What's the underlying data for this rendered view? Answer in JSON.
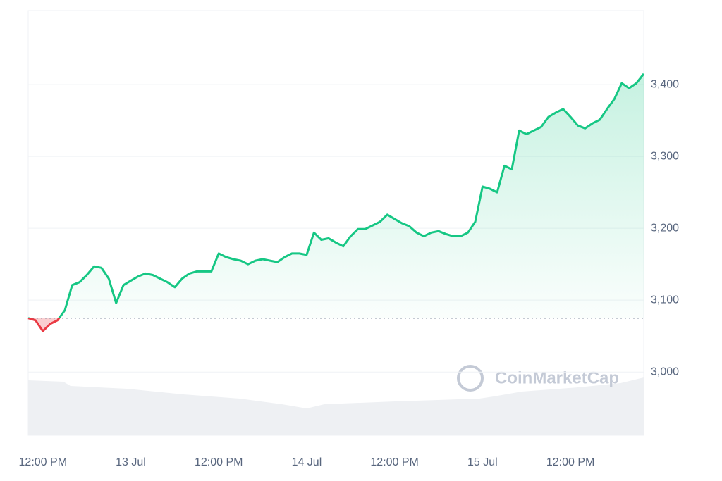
{
  "chart_data": {
    "type": "line",
    "series": [
      {
        "name": "Price",
        "color": "#16c784",
        "down_color": "#ea3943",
        "values": [
          3075,
          3072,
          3057,
          3067,
          3072,
          3086,
          3121,
          3125,
          3135,
          3147,
          3145,
          3130,
          3096,
          3121,
          3127,
          3133,
          3137,
          3135,
          3130,
          3125,
          3118,
          3130,
          3137,
          3140,
          3140,
          3140,
          3165,
          3160,
          3157,
          3155,
          3150,
          3155,
          3157,
          3155,
          3153,
          3160,
          3165,
          3165,
          3163,
          3194,
          3184,
          3186,
          3180,
          3175,
          3189,
          3199,
          3199,
          3204,
          3209,
          3219,
          3213,
          3207,
          3203,
          3194,
          3189,
          3194,
          3196,
          3192,
          3189,
          3189,
          3194,
          3209,
          3258,
          3255,
          3250,
          3287,
          3282,
          3336,
          3331,
          3336,
          3341,
          3355,
          3361,
          3366,
          3355,
          3343,
          3339,
          3346,
          3351,
          3366,
          3380,
          3402,
          3395,
          3402,
          3415
        ]
      }
    ],
    "baseline": 3075,
    "xlim": [
      0,
      84
    ],
    "xticks": [
      {
        "value": 2,
        "label": "12:00 PM"
      },
      {
        "value": 14,
        "label": "13 Jul"
      },
      {
        "value": 26,
        "label": "12:00 PM"
      },
      {
        "value": 38,
        "label": "14 Jul"
      },
      {
        "value": 50,
        "label": "12:00 PM"
      },
      {
        "value": 62,
        "label": "15 Jul"
      },
      {
        "value": 74,
        "label": "12:00 PM"
      }
    ],
    "ylim": [
      2912,
      3503
    ],
    "yticks": [
      {
        "value": 3000,
        "label": "3,000"
      },
      {
        "value": 3100,
        "label": "3,100"
      },
      {
        "value": 3200,
        "label": "3,200"
      },
      {
        "value": 3300,
        "label": "3,300"
      },
      {
        "value": 3400,
        "label": "3,400"
      }
    ],
    "grid": true,
    "watermark": "CoinMarketCap"
  }
}
